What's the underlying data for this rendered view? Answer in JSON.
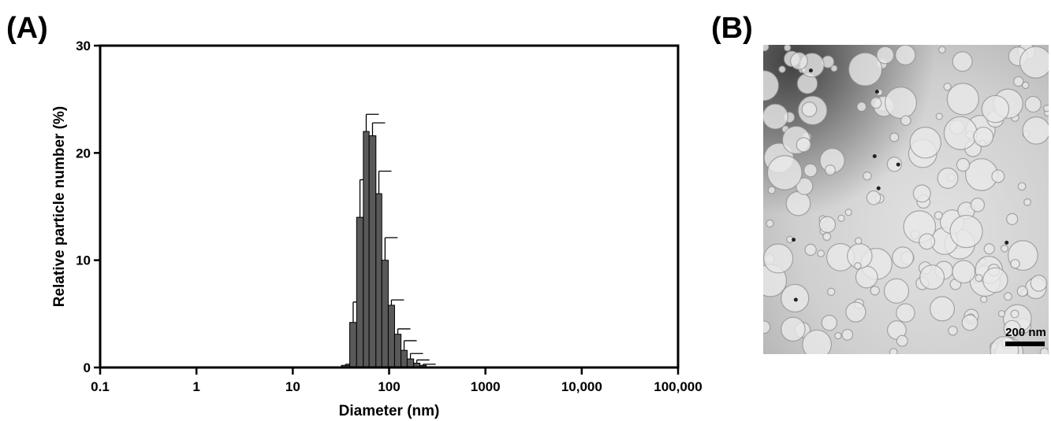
{
  "chart_data": {
    "type": "histogram",
    "panel_label": "(A)",
    "x_label": "Diameter (nm)",
    "y_label": "Relative particle number (%)",
    "x_log": true,
    "color": "#595959",
    "bins": [
      32,
      39,
      46,
      54,
      62,
      73,
      84,
      98,
      114,
      133,
      154,
      180,
      209,
      243
    ],
    "values": [
      0.2,
      4.2,
      14,
      22,
      21.6,
      16.2,
      10,
      5.8,
      3.1,
      1.6,
      0.8,
      0.4,
      0.2
    ],
    "errors": [
      0.1,
      1.9,
      3.5,
      1.6,
      1.2,
      2.1,
      2.1,
      0.5,
      0.5,
      0.9,
      0.5,
      0.3,
      0.1
    ],
    "xlim": [
      0.1,
      100000
    ],
    "xticks": [
      0.1,
      1,
      10,
      100,
      1000,
      {
        "value": 10000,
        "label": "10,000"
      },
      {
        "value": 100000,
        "label": "100,000"
      }
    ],
    "ylim": [
      0,
      30
    ],
    "yticks": [
      0,
      10,
      20,
      30
    ]
  },
  "image": {
    "panel_label": "(B)",
    "scale_bar_label": "200 nm"
  }
}
